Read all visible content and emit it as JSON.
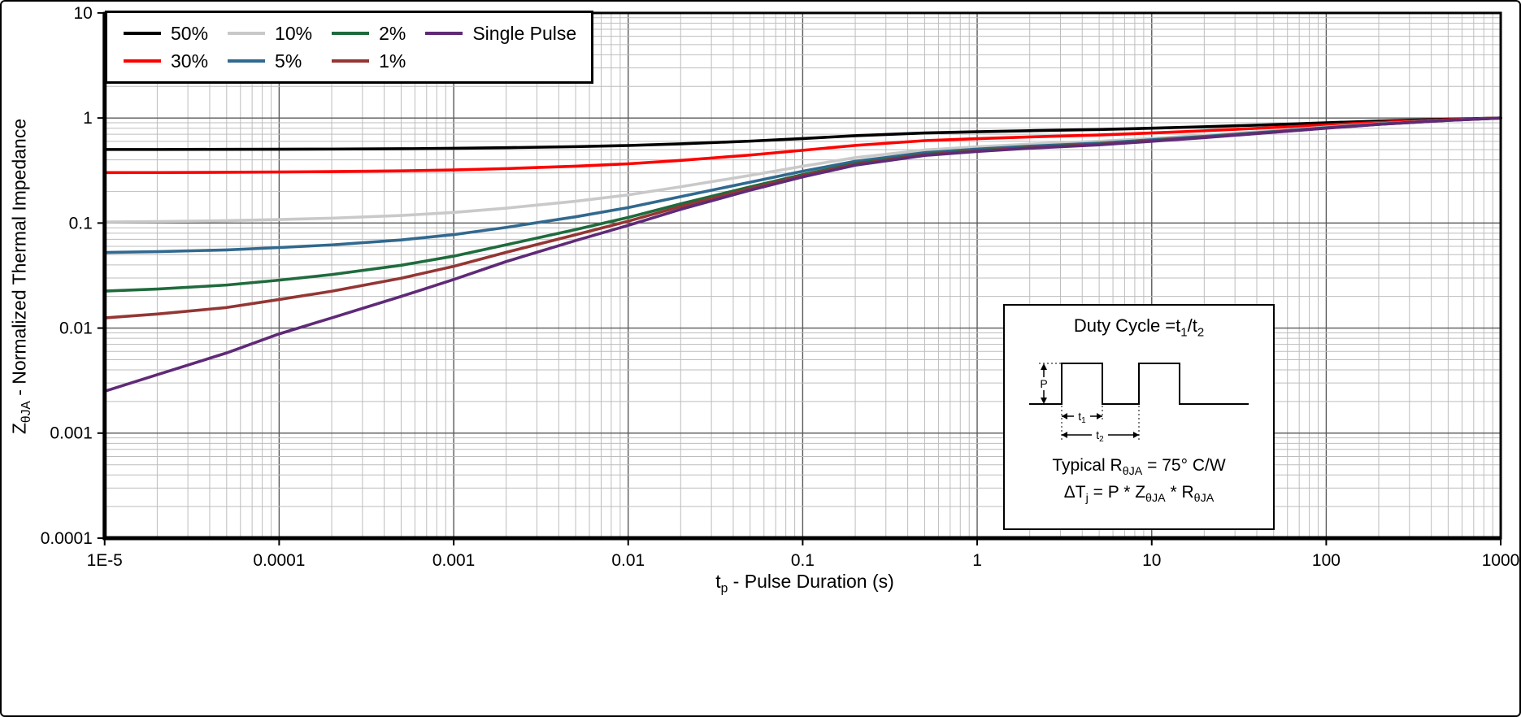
{
  "colors": {
    "background": "#ffffff",
    "axis": "#000000",
    "grid_minor": "#bdbdbd",
    "grid_major": "#5a5a5a"
  },
  "axis_titles": {
    "x_parts": [
      "t",
      "p",
      " - Pulse Duration (s)"
    ],
    "y_parts": [
      "Z",
      "θJA",
      " - Normalized Thermal Impedance"
    ]
  },
  "inset": {
    "title_parts": [
      "Duty Cycle =t",
      "1",
      "/t",
      "2"
    ],
    "waveform": {
      "p": "P",
      "t1": "t",
      "t1_sub": "1",
      "t2": "t",
      "t2_sub": "2"
    },
    "line1_parts": [
      "Typical R",
      "θJA",
      " = 75° C/W"
    ],
    "line2_parts": [
      "ΔT",
      "j",
      " = P * Z",
      "θJA",
      " * R",
      "θJA"
    ]
  },
  "chart_data": {
    "type": "line",
    "title": "",
    "xlabel": "tp - Pulse Duration (s)",
    "ylabel": "ZθJA - Normalized Thermal Impedance",
    "xscale": "log",
    "yscale": "log",
    "xlim": [
      1e-05,
      1000
    ],
    "ylim": [
      0.0001,
      10
    ],
    "grid": "log major + minor gridlines on both axes",
    "legend_position": "top-left",
    "x_ticks": {
      "values": [
        1e-05,
        0.0001,
        0.001,
        0.01,
        0.1,
        1,
        10,
        100,
        1000
      ],
      "labels": [
        "1E-5",
        "0.0001",
        "0.001",
        "0.01",
        "0.1",
        "1",
        "10",
        "100",
        "1000"
      ]
    },
    "y_ticks": {
      "values": [
        10,
        1,
        0.1,
        0.01,
        0.001,
        0.0001
      ],
      "labels": [
        "10",
        "1",
        "0.1",
        "0.01",
        "0.001",
        "0.0001"
      ]
    },
    "x": [
      1e-05,
      2e-05,
      5e-05,
      0.0001,
      0.0002,
      0.0005,
      0.001,
      0.002,
      0.005,
      0.01,
      0.02,
      0.05,
      0.1,
      0.2,
      0.5,
      1,
      2,
      5,
      10,
      20,
      50,
      100,
      200,
      500,
      1000
    ],
    "series": [
      {
        "name": "50%",
        "color": "#000000",
        "values": [
          0.5013,
          0.5018,
          0.5029,
          0.5044,
          0.5063,
          0.51,
          0.5145,
          0.5215,
          0.534,
          0.5475,
          0.5675,
          0.6025,
          0.6375,
          0.6775,
          0.72,
          0.74,
          0.7575,
          0.7775,
          0.8,
          0.825,
          0.865,
          0.9,
          0.935,
          0.975,
          1
        ]
      },
      {
        "name": "30%",
        "color": "#ff0000",
        "values": [
          0.3018,
          0.3025,
          0.3041,
          0.3062,
          0.3088,
          0.314,
          0.3203,
          0.3301,
          0.3476,
          0.3665,
          0.3945,
          0.4435,
          0.4925,
          0.5485,
          0.608,
          0.636,
          0.6605,
          0.6885,
          0.72,
          0.755,
          0.811,
          0.86,
          0.909,
          0.965,
          1
        ]
      },
      {
        "name": "10%",
        "color": "#c9c9c9",
        "values": [
          0.1023,
          0.1032,
          0.1052,
          0.1079,
          0.1113,
          0.118,
          0.1261,
          0.1387,
          0.1612,
          0.1855,
          0.2215,
          0.2845,
          0.3475,
          0.4195,
          0.496,
          0.532,
          0.5635,
          0.5995,
          0.64,
          0.685,
          0.757,
          0.82,
          0.883,
          0.955,
          1
        ]
      },
      {
        "name": "5%",
        "color": "#31698f",
        "values": [
          0.0524,
          0.0534,
          0.0555,
          0.0584,
          0.0619,
          0.069,
          0.0776,
          0.0909,
          0.1146,
          0.1403,
          0.1783,
          0.2448,
          0.3113,
          0.3873,
          0.468,
          0.506,
          0.5393,
          0.5773,
          0.62,
          0.6675,
          0.7435,
          0.81,
          0.8765,
          0.9525,
          1
        ]
      },
      {
        "name": "2%",
        "color": "#1f6b3d",
        "values": [
          0.0225,
          0.0235,
          0.0257,
          0.0286,
          0.0323,
          0.0396,
          0.0484,
          0.0621,
          0.0866,
          0.1131,
          0.1523,
          0.2209,
          0.2895,
          0.3679,
          0.4512,
          0.4904,
          0.5247,
          0.5639,
          0.6084,
          0.657,
          0.7354,
          0.804,
          0.8726,
          0.951,
          1
        ]
      },
      {
        "name": "1%",
        "color": "#943634",
        "values": [
          0.0125,
          0.0136,
          0.0157,
          0.0187,
          0.0224,
          0.0298,
          0.0387,
          0.0526,
          0.0773,
          0.1041,
          0.1437,
          0.213,
          0.2823,
          0.3615,
          0.4456,
          0.4852,
          0.5199,
          0.5595,
          0.604,
          0.6535,
          0.7327,
          0.802,
          0.8713,
          0.9505,
          1
        ]
      },
      {
        "name": "Single Pulse",
        "color": "#5f2a77",
        "values": [
          0.0025,
          0.0036,
          0.0058,
          0.0088,
          0.0125,
          0.02,
          0.029,
          0.043,
          0.068,
          0.095,
          0.135,
          0.205,
          0.275,
          0.355,
          0.44,
          0.48,
          0.515,
          0.555,
          0.6,
          0.65,
          0.73,
          0.8,
          0.87,
          0.95,
          1
        ]
      }
    ]
  }
}
